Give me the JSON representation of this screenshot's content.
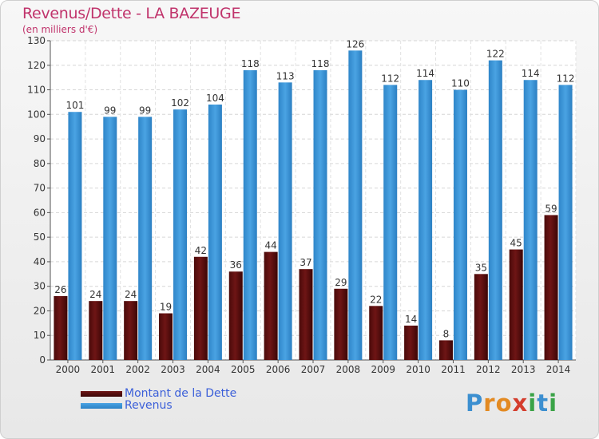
{
  "title": "Revenus/Dette - LA BAZEUGE",
  "subtitle": "(en milliers d'€)",
  "colors": {
    "dette": "#6e1515",
    "revenus": "#4aa3e3",
    "title": "#c0336b",
    "legend_text": "#3b5fd9"
  },
  "legend": {
    "dette_label": "Montant de la Dette",
    "revenus_label": "Revenus"
  },
  "logo": {
    "letters": [
      "P",
      "r",
      "o",
      "x",
      "i",
      "t",
      "i"
    ],
    "colors": [
      "#3c8fd0",
      "#e38a22",
      "#e38a22",
      "#d43d2d",
      "#3aa347",
      "#3c8fd0",
      "#3aa347"
    ]
  },
  "chart_data": {
    "type": "bar",
    "categories": [
      "2000",
      "2001",
      "2002",
      "2003",
      "2004",
      "2005",
      "2006",
      "2007",
      "2008",
      "2009",
      "2010",
      "2011",
      "2012",
      "2013",
      "2014"
    ],
    "series": [
      {
        "name": "Montant de la Dette",
        "values": [
          26,
          24,
          24,
          19,
          42,
          36,
          44,
          37,
          29,
          22,
          14,
          8,
          35,
          45,
          59
        ]
      },
      {
        "name": "Revenus",
        "values": [
          101,
          99,
          99,
          102,
          104,
          118,
          113,
          118,
          126,
          112,
          114,
          110,
          122,
          114,
          112
        ]
      }
    ],
    "ylim": [
      0,
      130
    ],
    "yticks": [
      0,
      10,
      20,
      30,
      40,
      50,
      60,
      70,
      80,
      90,
      100,
      110,
      120,
      130
    ],
    "grid": true,
    "legend_position": "bottom-left"
  }
}
